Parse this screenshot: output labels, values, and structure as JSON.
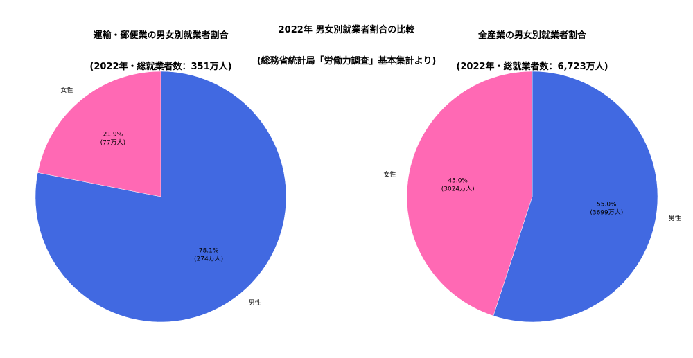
{
  "figure": {
    "title_line1": "2022年 男女別就業者割合の比較",
    "title_line2": "(総務省統計局「労働力調査」基本集計より)"
  },
  "colors": {
    "male": "#4169E1",
    "female": "#FF69B4"
  },
  "chart_data": [
    {
      "type": "pie",
      "title_line1": "運輸・郵便業の男女別就業者割合",
      "title_line2": "(2022年・総就業者数：351万人)",
      "slices": [
        {
          "label": "男性",
          "value": 274,
          "percent": "78.1%",
          "count": "(274万人)"
        },
        {
          "label": "女性",
          "value": 77,
          "percent": "21.9%",
          "count": "(77万人)"
        }
      ]
    },
    {
      "type": "pie",
      "title_line1": "全産業の男女別就業者割合",
      "title_line2": "(2022年・総就業者数：6,723万人)",
      "slices": [
        {
          "label": "男性",
          "value": 3699,
          "percent": "55.0%",
          "count": "(3699万人)"
        },
        {
          "label": "女性",
          "value": 3024,
          "percent": "45.0%",
          "count": "(3024万人)"
        }
      ]
    }
  ]
}
